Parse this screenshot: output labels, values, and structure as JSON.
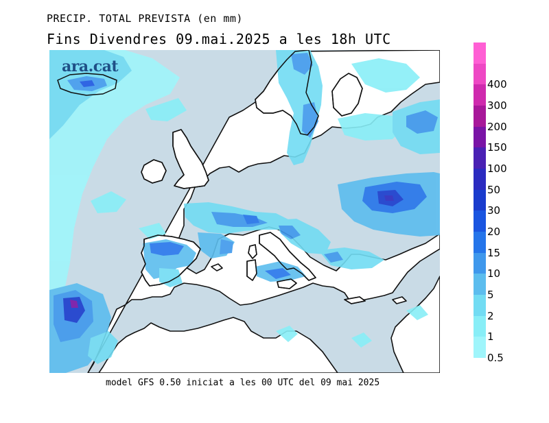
{
  "header": {
    "line1": "PRECIP. TOTAL PREVISTA (en mm)",
    "line2": "Fins Divendres 09.mai.2025 a les 18h UTC"
  },
  "watermark": {
    "text": "ara.cat"
  },
  "footer": {
    "text": "model GFS 0.50 iniciat a les 00 UTC del 09 mai 2025"
  },
  "legend": {
    "items": [
      {
        "label": "0.5",
        "color": "#9ff5fb"
      },
      {
        "label": "1",
        "color": "#88eef7"
      },
      {
        "label": "2",
        "color": "#72dcf3"
      },
      {
        "label": "5",
        "color": "#5cbdee"
      },
      {
        "label": "10",
        "color": "#3f98ec"
      },
      {
        "label": "15",
        "color": "#2575ea"
      },
      {
        "label": "20",
        "color": "#1a55e0"
      },
      {
        "label": "30",
        "color": "#1a3ccd"
      },
      {
        "label": "50",
        "color": "#2b2bc0"
      },
      {
        "label": "100",
        "color": "#4a21b4"
      },
      {
        "label": "150",
        "color": "#7a14a6"
      },
      {
        "label": "200",
        "color": "#a8189a"
      },
      {
        "label": "300",
        "color": "#cf2aae"
      },
      {
        "label": "400",
        "color": "#ee48c4"
      },
      {
        "label": "",
        "color": "#ff5fd4"
      }
    ]
  },
  "colors": {
    "sea": "#c9dbe6",
    "land": "#ffffff",
    "coast": "#111111"
  }
}
